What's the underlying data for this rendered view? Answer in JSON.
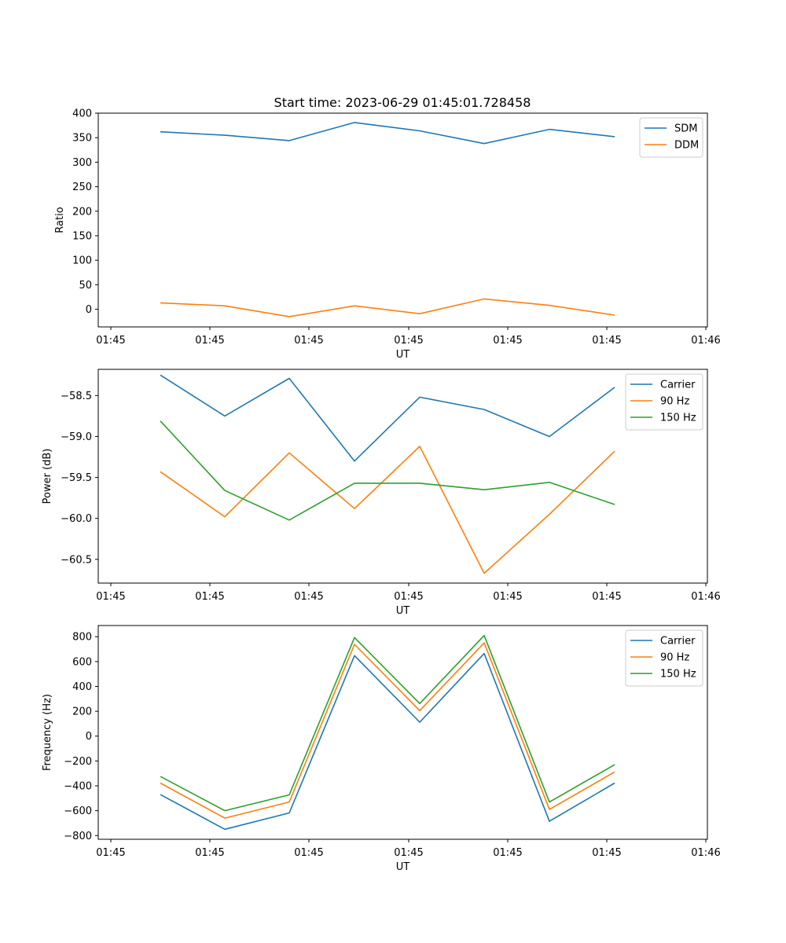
{
  "title": "Start time: 2023-06-29 01:45:01.728458",
  "chart_data": [
    {
      "type": "line",
      "xlabel": "UT",
      "ylabel": "Ratio",
      "x_ticks": [
        "01:45",
        "01:45",
        "01:45",
        "01:45",
        "01:45",
        "01:45",
        "01:46"
      ],
      "y_ticks": [
        0,
        50,
        100,
        150,
        200,
        250,
        300,
        350,
        400
      ],
      "ylim": [
        -36,
        400
      ],
      "legend_position": "top-right",
      "series": [
        {
          "name": "SDM",
          "color": "#1f77b4",
          "values": [
            362,
            355,
            344,
            381,
            364,
            338,
            367,
            352
          ]
        },
        {
          "name": "DDM",
          "color": "#ff7f0e",
          "values": [
            13,
            7,
            -15,
            7,
            -9,
            21,
            8,
            -12
          ]
        }
      ]
    },
    {
      "type": "line",
      "xlabel": "UT",
      "ylabel": "Power (dB)",
      "x_ticks": [
        "01:45",
        "01:45",
        "01:45",
        "01:45",
        "01:45",
        "01:45",
        "01:46"
      ],
      "y_ticks": [
        -58.5,
        -59.0,
        -59.5,
        -60.0,
        -60.5
      ],
      "y_tick_labels": [
        "−58.5",
        "−59.0",
        "−59.5",
        "−60.0",
        "−60.5"
      ],
      "ylim": [
        -60.79,
        -58.18
      ],
      "legend_position": "top-right",
      "series": [
        {
          "name": "Carrier",
          "color": "#1f77b4",
          "values": [
            -58.25,
            -58.75,
            -58.29,
            -59.3,
            -58.52,
            -58.67,
            -59.0,
            -58.4
          ]
        },
        {
          "name": "90 Hz",
          "color": "#ff7f0e",
          "values": [
            -59.43,
            -59.98,
            -59.2,
            -59.88,
            -59.12,
            -60.67,
            -59.95,
            -59.18
          ]
        },
        {
          "name": "150 Hz",
          "color": "#2ca02c",
          "values": [
            -58.81,
            -59.66,
            -60.02,
            -59.57,
            -59.57,
            -59.65,
            -59.56,
            -59.83
          ]
        }
      ]
    },
    {
      "type": "line",
      "xlabel": "UT",
      "ylabel": "Frequency (Hz)",
      "x_ticks": [
        "01:45",
        "01:45",
        "01:45",
        "01:45",
        "01:45",
        "01:45",
        "01:46"
      ],
      "y_ticks": [
        -800,
        -600,
        -400,
        -200,
        0,
        200,
        400,
        600,
        800
      ],
      "y_tick_labels": [
        "−800",
        "−600",
        "−400",
        "−200",
        "0",
        "200",
        "400",
        "600",
        "800"
      ],
      "ylim": [
        -830,
        890
      ],
      "legend_position": "top-right",
      "series": [
        {
          "name": "Carrier",
          "color": "#1f77b4",
          "values": [
            -470,
            -750,
            -618,
            648,
            112,
            665,
            -685,
            -378
          ]
        },
        {
          "name": "90 Hz",
          "color": "#ff7f0e",
          "values": [
            -378,
            -660,
            -530,
            738,
            205,
            750,
            -590,
            -288
          ]
        },
        {
          "name": "150 Hz",
          "color": "#2ca02c",
          "values": [
            -325,
            -600,
            -473,
            793,
            262,
            810,
            -530,
            -230
          ]
        }
      ]
    }
  ]
}
